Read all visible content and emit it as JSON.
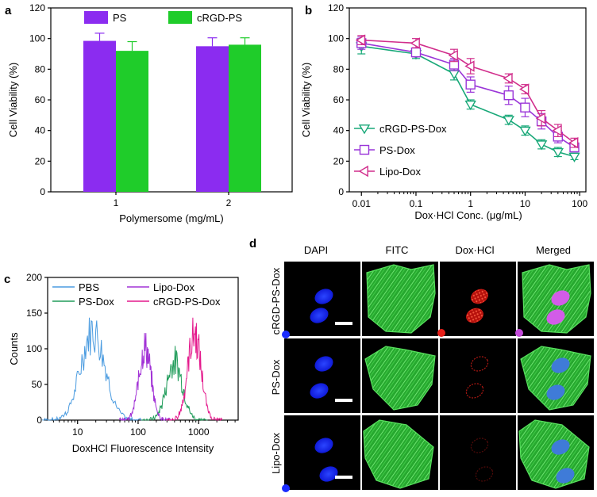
{
  "panels": {
    "a": "a",
    "b": "b",
    "c": "c",
    "d": "d"
  },
  "colors": {
    "ps": "#8b2cf0",
    "crgd": "#1fcc2a",
    "crgd_dox": "#18a878",
    "ps_dox": "#9a35d8",
    "lipo_dox": "#d12e8c",
    "pbs": "#4a9be0",
    "ps_dox_flow": "#209c5a",
    "lipo_flow": "#a233d6",
    "crgd_flow": "#e4198c",
    "blue": "#1a2cff",
    "green": "#2fc43a",
    "red": "#e8201a"
  },
  "chart_data": [
    {
      "type": "bar",
      "panel": "a",
      "categories": [
        "1",
        "2"
      ],
      "series": [
        {
          "name": "PS",
          "values": [
            98.5,
            95
          ],
          "errors": [
            5,
            5.5
          ]
        },
        {
          "name": "cRGD-PS",
          "values": [
            92,
            96
          ],
          "errors": [
            6,
            4.5
          ]
        }
      ],
      "xlabel": "Polymersome (mg/mL)",
      "ylabel": "Cell Viability (%)",
      "ylim": [
        0,
        120
      ],
      "yticks": [
        "0",
        "20",
        "40",
        "60",
        "80",
        "100",
        "120"
      ]
    },
    {
      "type": "line",
      "panel": "b",
      "xscale": "log",
      "series": [
        {
          "name": "cRGD-PS-Dox",
          "x": [
            0.01,
            0.1,
            0.5,
            1,
            5,
            10,
            20,
            40,
            80
          ],
          "values": [
            95,
            90,
            77,
            57,
            47,
            40,
            31,
            26,
            23
          ],
          "errors": [
            5,
            3,
            4,
            3,
            3,
            3,
            3,
            3,
            2
          ]
        },
        {
          "name": "PS-Dox",
          "x": [
            0.01,
            0.1,
            0.5,
            1,
            5,
            10,
            20,
            40,
            80
          ],
          "values": [
            97,
            91,
            83,
            70,
            63,
            55,
            46,
            36,
            29
          ],
          "errors": [
            4,
            3,
            4,
            5,
            6,
            6,
            5,
            4,
            3
          ]
        },
        {
          "name": "Lipo-Dox",
          "x": [
            0.01,
            0.1,
            0.5,
            1,
            5,
            10,
            20,
            40,
            80
          ],
          "values": [
            99,
            97,
            89,
            82,
            74,
            67,
            48,
            40,
            32
          ],
          "errors": [
            3,
            3,
            4,
            5,
            3,
            3,
            5,
            4,
            3
          ]
        }
      ],
      "xlabel": "Dox·HCl  Conc. (μg/mL)",
      "ylabel": "Cell Viability (%)",
      "ylim": [
        0,
        120
      ],
      "yticks": [
        "0",
        "20",
        "40",
        "60",
        "80",
        "100",
        "120"
      ],
      "xticks": [
        "0.01",
        "0.1",
        "1",
        "10",
        "100"
      ]
    },
    {
      "type": "line",
      "panel": "c",
      "xscale": "log",
      "style": "histogram",
      "series": [
        {
          "name": "PBS",
          "center": 18,
          "sigma": 0.2,
          "peak": 130
        },
        {
          "name": "PS-Dox",
          "center": 400,
          "sigma": 0.13,
          "peak": 85
        },
        {
          "name": "Lipo-Dox",
          "center": 130,
          "sigma": 0.1,
          "peak": 105
        },
        {
          "name": "cRGD-PS-Dox",
          "center": 850,
          "sigma": 0.11,
          "peak": 125
        }
      ],
      "xlabel": "DoxHCl Fluorescence Intensity",
      "ylabel": "Counts",
      "ylim": [
        0,
        200
      ],
      "yticks": [
        "0",
        "50",
        "100",
        "150",
        "200"
      ],
      "xticks": [
        "10",
        "100",
        "1000"
      ]
    }
  ],
  "microscopy": {
    "columns": [
      "DAPI",
      "FITC",
      "Dox·HCl",
      "Merged"
    ],
    "rows": [
      "cRGD-PS-Dox",
      "PS-Dox",
      "Lipo-Dox"
    ]
  }
}
